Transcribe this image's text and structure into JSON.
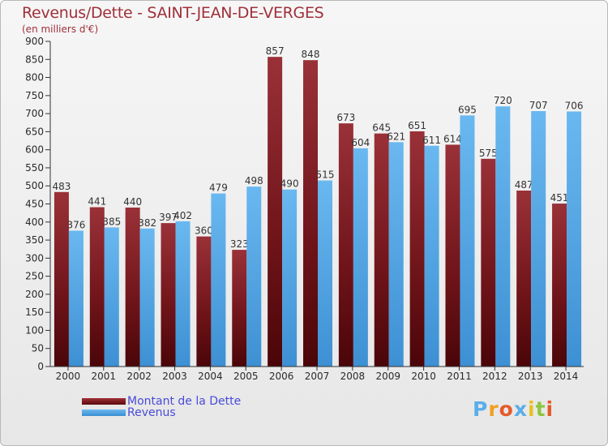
{
  "header": {
    "title": "Revenus/Dette - SAINT-JEAN-DE-VERGES",
    "subtitle": "(en milliers d'€)"
  },
  "chart_data": {
    "type": "bar",
    "categories": [
      "2000",
      "2001",
      "2002",
      "2003",
      "2004",
      "2005",
      "2006",
      "2007",
      "2008",
      "2009",
      "2010",
      "2011",
      "2012",
      "2013",
      "2014"
    ],
    "series": [
      {
        "name": "Montant de la Dette",
        "values": [
          483,
          441,
          440,
          397,
          360,
          323,
          857,
          848,
          673,
          645,
          651,
          614,
          575,
          487,
          451
        ],
        "color": "#7a1a1e"
      },
      {
        "name": "Revenus",
        "values": [
          376,
          385,
          382,
          402,
          479,
          498,
          490,
          515,
          604,
          621,
          611,
          695,
          720,
          707,
          706
        ],
        "color": "#4aa3e6"
      }
    ],
    "ylim": [
      0,
      900
    ],
    "yticks": [
      0,
      50,
      100,
      150,
      200,
      250,
      300,
      350,
      400,
      450,
      500,
      550,
      600,
      650,
      700,
      750,
      800,
      850,
      900
    ],
    "grid": false,
    "legend_position": "bottom-left"
  },
  "legend": {
    "items": [
      {
        "label": "Montant de la Dette",
        "color": "#7a1a1e"
      },
      {
        "label": "Revenus",
        "color": "#4aa3e6"
      }
    ]
  },
  "logo": {
    "text": "Proxiti",
    "letters": [
      {
        "ch": "P",
        "color": "#5aaee8"
      },
      {
        "ch": "r",
        "color": "#f0a020"
      },
      {
        "ch": "o",
        "color": "#e55a2a"
      },
      {
        "ch": "x",
        "color": "#5aaee8"
      },
      {
        "ch": "i",
        "color": "#e8c020"
      },
      {
        "ch": "t",
        "color": "#8cc63e"
      },
      {
        "ch": "i",
        "color": "#e55a2a"
      }
    ]
  }
}
